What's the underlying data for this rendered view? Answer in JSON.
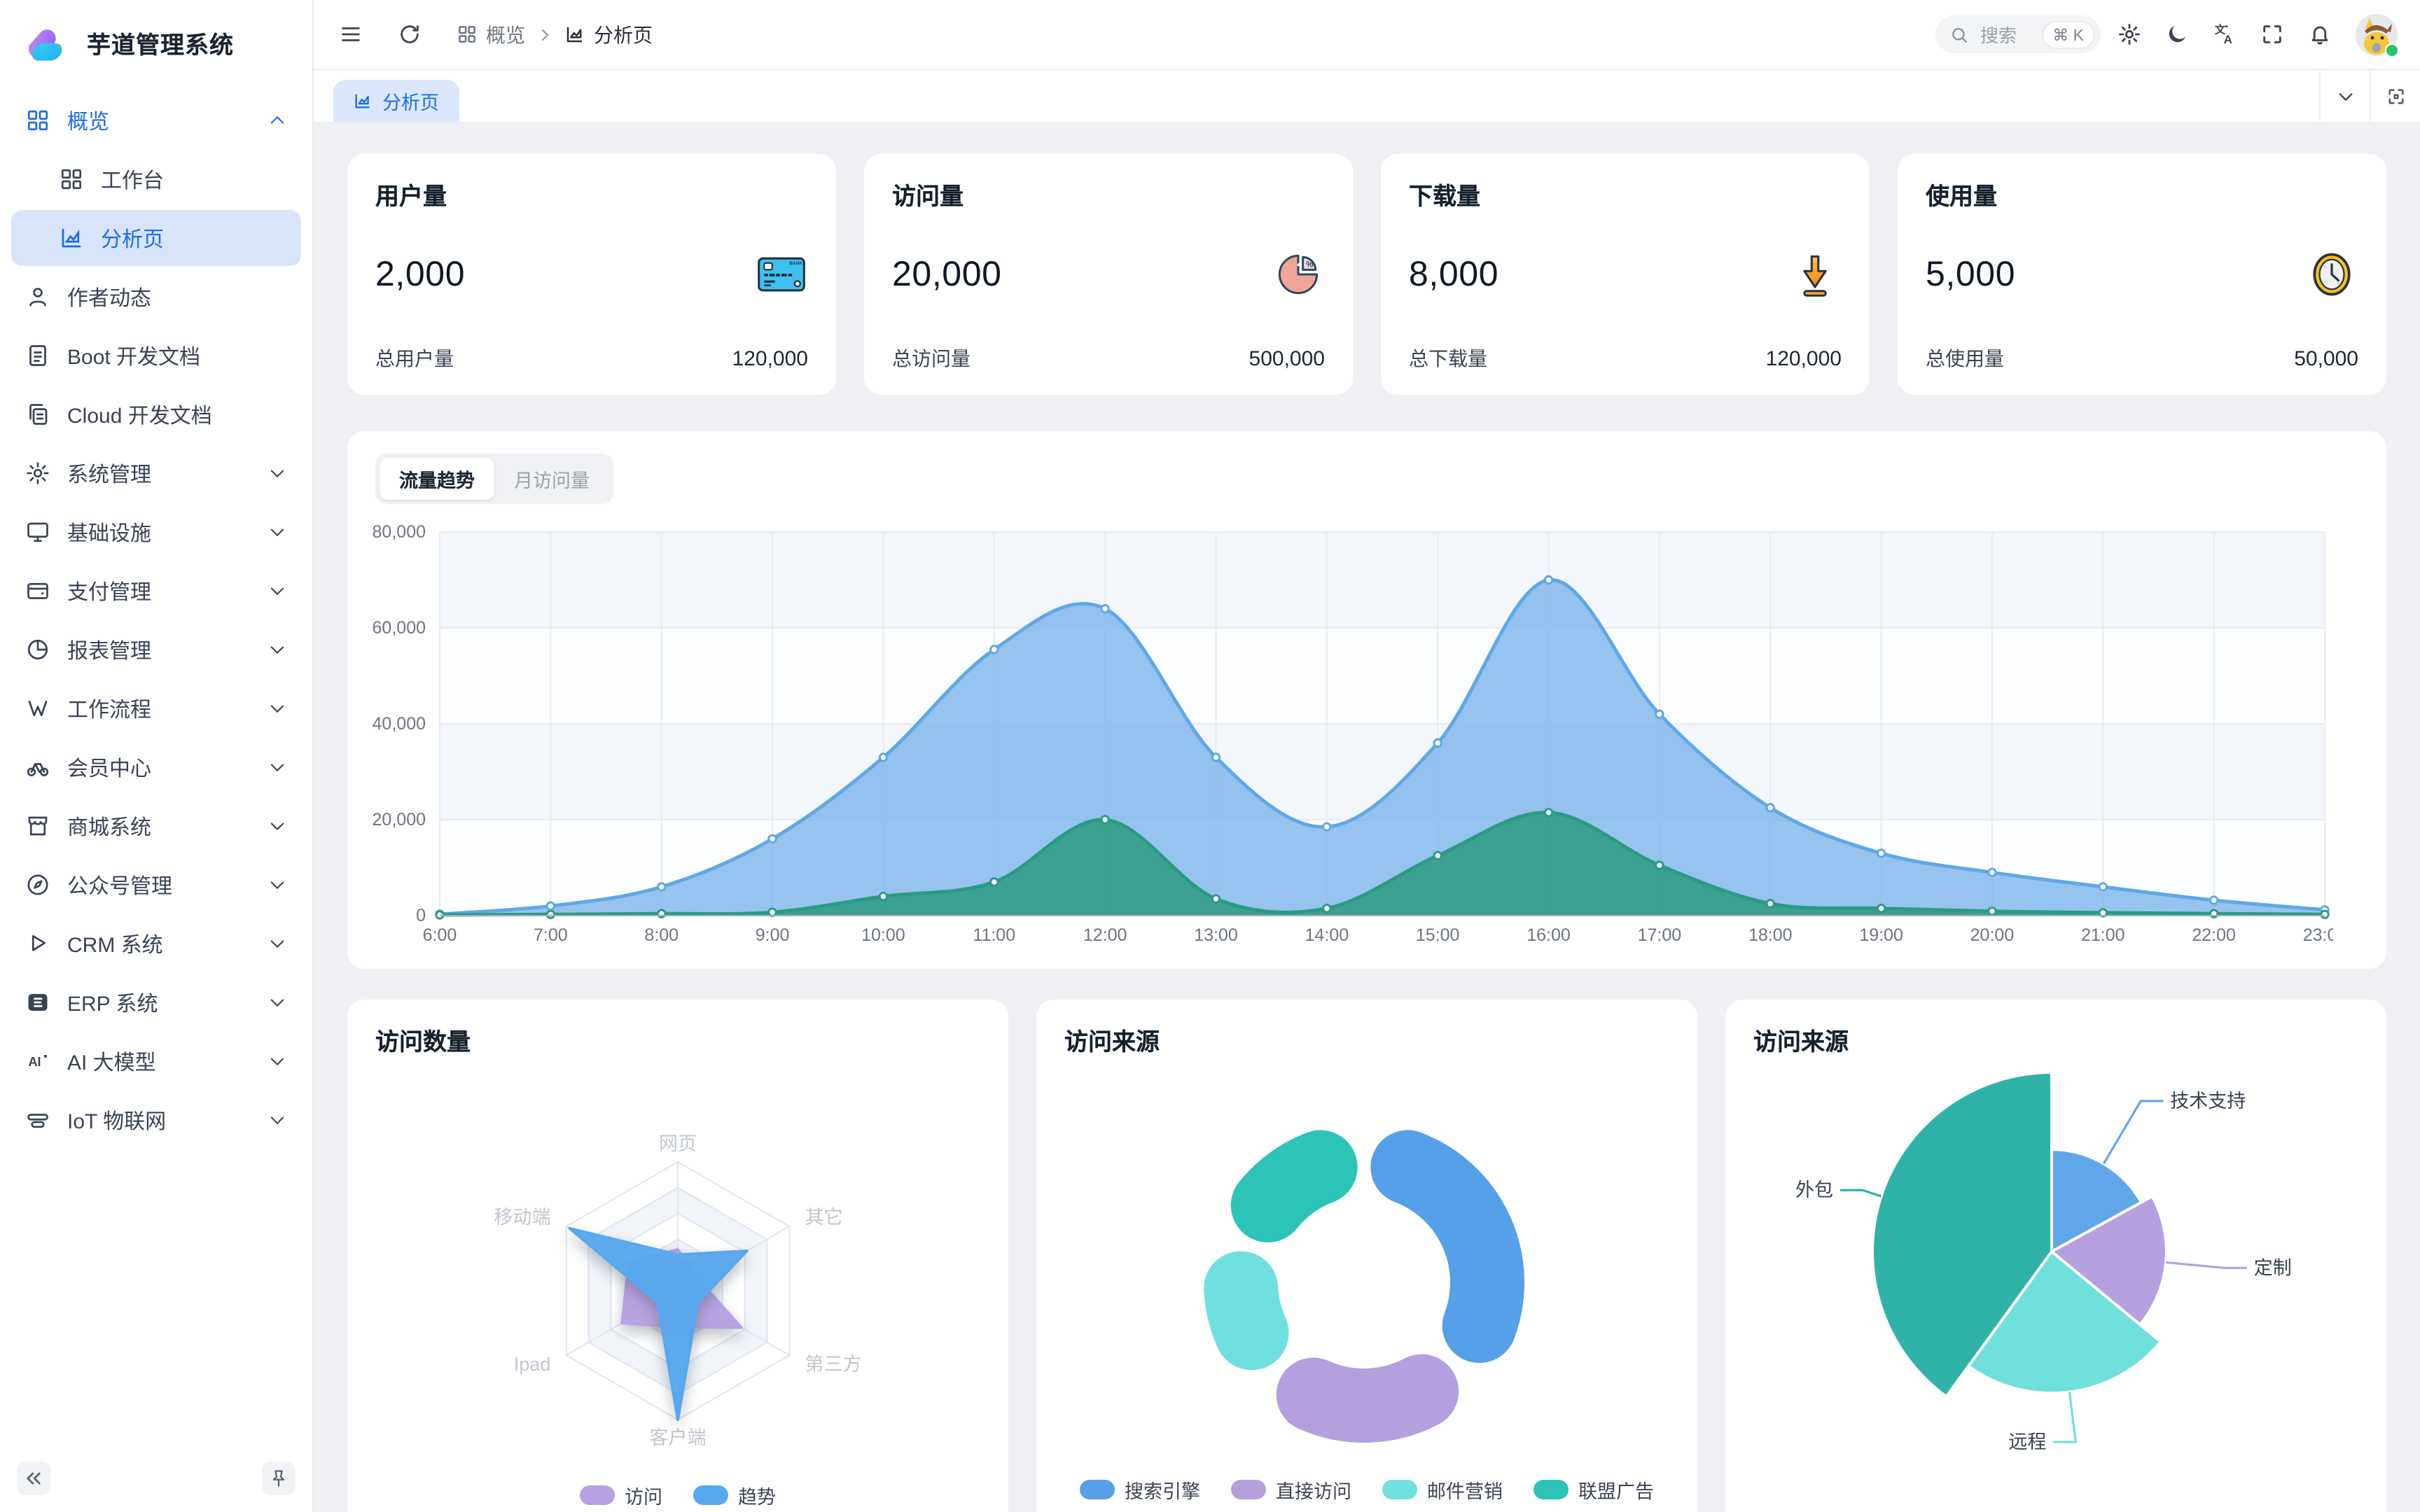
{
  "app": {
    "title": "芋道管理系统"
  },
  "colors": {
    "accent": "#1b6ce8",
    "active_bg": "#d7e4fa",
    "blue": "#5FA8E8",
    "green": "#2A9B83",
    "purple": "#B7A2E2",
    "cyan": "#6FDFD9",
    "teal": "#30BFB4",
    "content_bg": "#eef0f4"
  },
  "sidebar": {
    "items": [
      {
        "icon": "grid",
        "label": "概览",
        "chevron": "up",
        "parent_active": true,
        "children": [
          {
            "icon": "grid",
            "label": "工作台",
            "active": false
          },
          {
            "icon": "chart",
            "label": "分析页",
            "active": true
          }
        ]
      },
      {
        "icon": "user",
        "label": "作者动态"
      },
      {
        "icon": "document",
        "label": "Boot 开发文档"
      },
      {
        "icon": "copy",
        "label": "Cloud 开发文档"
      },
      {
        "icon": "gear",
        "label": "系统管理",
        "chevron": "down"
      },
      {
        "icon": "monitor",
        "label": "基础设施",
        "chevron": "down"
      },
      {
        "icon": "wallet",
        "label": "支付管理",
        "chevron": "down"
      },
      {
        "icon": "pie",
        "label": "报表管理",
        "chevron": "down"
      },
      {
        "icon": "flow",
        "label": "工作流程",
        "chevron": "down"
      },
      {
        "icon": "bike",
        "label": "会员中心",
        "chevron": "down"
      },
      {
        "icon": "shop",
        "label": "商城系统",
        "chevron": "down"
      },
      {
        "icon": "compass",
        "label": "公众号管理",
        "chevron": "down"
      },
      {
        "icon": "triangle",
        "label": "CRM 系统",
        "chevron": "down"
      },
      {
        "icon": "erp",
        "label": "ERP 系统",
        "chevron": "down"
      },
      {
        "icon": "ai",
        "label": "AI 大模型",
        "chevron": "down"
      },
      {
        "icon": "iot",
        "label": "IoT 物联网",
        "chevron": "down"
      }
    ]
  },
  "topbar": {
    "breadcrumb": {
      "section": "概览",
      "page": "分析页"
    },
    "search": {
      "placeholder": "搜索",
      "shortcut": "⌘ K"
    }
  },
  "tabbar": {
    "active_tab": "分析页"
  },
  "stats": [
    {
      "title": "用户量",
      "value": "2,000",
      "icon": "credit-card",
      "foot_label": "总用户量",
      "foot_value": "120,000"
    },
    {
      "title": "访问量",
      "value": "20,000",
      "icon": "pie-percent",
      "foot_label": "总访问量",
      "foot_value": "500,000"
    },
    {
      "title": "下载量",
      "value": "8,000",
      "icon": "download",
      "foot_label": "总下载量",
      "foot_value": "120,000"
    },
    {
      "title": "使用量",
      "value": "5,000",
      "icon": "clock",
      "foot_label": "总使用量",
      "foot_value": "50,000"
    }
  ],
  "chart_data": [
    {
      "type": "area",
      "tabs": [
        "流量趋势",
        "月访问量"
      ],
      "active_tab": "流量趋势",
      "x": [
        "6:00",
        "7:00",
        "8:00",
        "9:00",
        "10:00",
        "11:00",
        "12:00",
        "13:00",
        "14:00",
        "15:00",
        "16:00",
        "17:00",
        "18:00",
        "19:00",
        "20:00",
        "21:00",
        "22:00",
        "23:00"
      ],
      "ylim": [
        0,
        80000
      ],
      "yticks": [
        0,
        20000,
        40000,
        60000,
        80000
      ],
      "grid": true,
      "series": [
        {
          "key": "blue",
          "line": "#5FA8E8",
          "fill": "rgba(122,178,234,0.78)",
          "values": [
            300,
            2000,
            6000,
            16000,
            33000,
            55500,
            64000,
            33000,
            18500,
            36000,
            70000,
            42000,
            22500,
            13000,
            9000,
            6000,
            3200,
            1200
          ]
        },
        {
          "key": "green",
          "line": "#2A9B83",
          "fill": "rgba(50,157,133,0.9)",
          "values": [
            150,
            250,
            400,
            700,
            4000,
            7000,
            20000,
            3500,
            1500,
            12500,
            21500,
            10500,
            2500,
            1500,
            900,
            600,
            400,
            250
          ]
        }
      ]
    },
    {
      "type": "radar",
      "title": "访问数量",
      "axes": [
        "网页",
        "其它",
        "第三方",
        "客户端",
        "Ipad",
        "移动端"
      ],
      "max": 100,
      "legend_position": "bottom",
      "series": [
        {
          "name": "访问",
          "color": "#B7A2E2",
          "values": [
            32,
            18,
            57,
            28,
            50,
            44
          ]
        },
        {
          "name": "趋势",
          "color": "#57A8EE",
          "values": [
            28,
            62,
            18,
            100,
            18,
            97
          ]
        }
      ]
    },
    {
      "type": "donut",
      "title": "访问来源",
      "legend_position": "bottom",
      "slices": [
        {
          "name": "搜索引擎",
          "color": "#55A0E8",
          "pct": 36.5
        },
        {
          "name": "直接访问",
          "color": "#B3A0DD",
          "pct": 26
        },
        {
          "name": "邮件营销",
          "color": "#70DFE0",
          "pct": 17.5
        },
        {
          "name": "联盟广告",
          "color": "#2CC3B9",
          "pct": 20
        }
      ]
    },
    {
      "type": "rose",
      "title": "访问来源",
      "slices": [
        {
          "name": "技术支持",
          "color": "#61A6E8",
          "pct": 17,
          "radius_frac": 0.57
        },
        {
          "name": "定制",
          "color": "#B5A1DF",
          "pct": 19,
          "radius_frac": 0.64
        },
        {
          "name": "远程",
          "color": "#6FE0DC",
          "pct": 24,
          "radius_frac": 0.79
        },
        {
          "name": "外包",
          "color": "#2FB3A9",
          "pct": 40,
          "radius_frac": 1.0
        }
      ]
    }
  ]
}
